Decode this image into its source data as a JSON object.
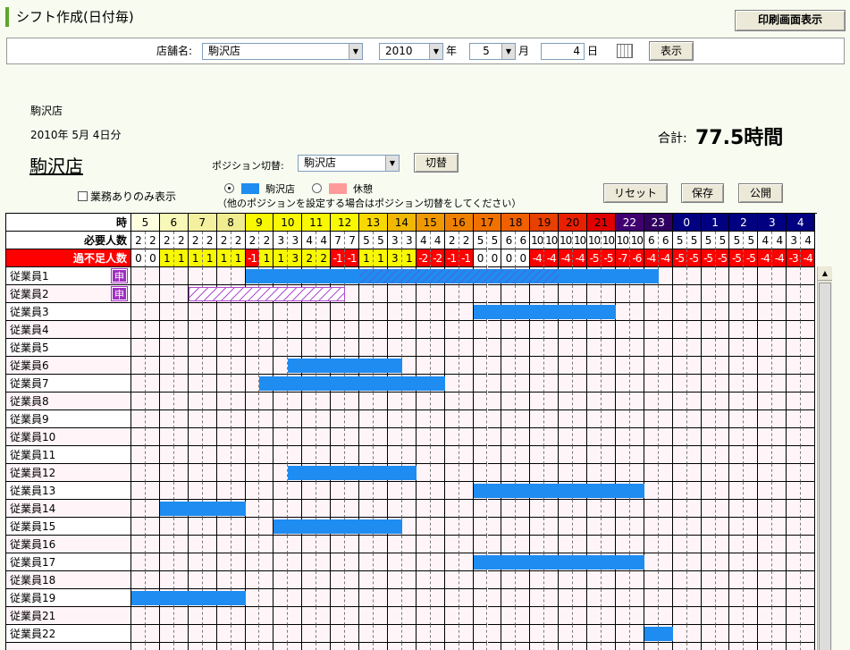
{
  "page_title": "シフト作成(日付毎)",
  "print_button": "印刷画面表示",
  "filter": {
    "store_label": "店舗名:",
    "store_value": "駒沢店",
    "year_value": "2010",
    "year_unit": "年",
    "month_value": "5",
    "month_unit": "月",
    "day_value": "4",
    "day_unit": "日",
    "show_button": "表示",
    "calendar_icon": "calendar-icon"
  },
  "info": {
    "store_small": "駒沢店",
    "date": "2010年 5月 4日分",
    "store_big": "駒沢店",
    "total_label": "合計:",
    "total_value": "77.5時間"
  },
  "position": {
    "label": "ポジション切替:",
    "value": "駒沢店",
    "switch_button": "切替"
  },
  "checkbox_label": "業務ありのみ表示",
  "legend": {
    "item1": "駒沢店",
    "item2": "休憩",
    "item1_color": "#1e8cf0",
    "item2_color": "#ff9a9a",
    "note": "（他のポジションを設定する場合はポジション切替をしてください）"
  },
  "actions": {
    "reset": "リセット",
    "save": "保存",
    "publish": "公開"
  },
  "grid": {
    "header_label": "時",
    "required_label": "必要人数",
    "shortage_label": "過不足人数",
    "badge_text": "申",
    "hours": [
      "5",
      "6",
      "7",
      "8",
      "9",
      "10",
      "11",
      "12",
      "13",
      "14",
      "15",
      "16",
      "17",
      "18",
      "19",
      "20",
      "21",
      "22",
      "23",
      "0",
      "1",
      "2",
      "3",
      "4"
    ],
    "hour_colors": [
      "#ffffe0",
      "#f8f8b8",
      "#f4f0a0",
      "#f0ec90",
      "#f8f800",
      "#f8f800",
      "#f8f800",
      "#f8f800",
      "#f8d800",
      "#f0b800",
      "#f09800",
      "#f08000",
      "#f07000",
      "#f06000",
      "#e84000",
      "#e82000",
      "#e00000",
      "#400070",
      "#300060",
      "#000080",
      "#000080",
      "#000080",
      "#000080",
      "#000080"
    ],
    "hour_text_colors": [
      "#000",
      "#000",
      "#000",
      "#000",
      "#000",
      "#000",
      "#000",
      "#000",
      "#000",
      "#000",
      "#000",
      "#000",
      "#000",
      "#000",
      "#000",
      "#000",
      "#000",
      "#fff",
      "#fff",
      "#fff",
      "#fff",
      "#fff",
      "#fff",
      "#fff"
    ],
    "required": [
      "2",
      "2",
      "2",
      "2",
      "2",
      "2",
      "2",
      "2",
      "2",
      "2",
      "3",
      "3",
      "4",
      "4",
      "7",
      "7",
      "5",
      "5",
      "3",
      "3",
      "4",
      "4",
      "2",
      "2",
      "5",
      "5",
      "6",
      "6",
      "10",
      "10",
      "10",
      "10",
      "10",
      "10",
      "10",
      "10",
      "6",
      "6",
      "5",
      "5",
      "5",
      "5",
      "5",
      "5",
      "4",
      "4",
      "3",
      "4"
    ],
    "shortage": [
      "0",
      "0",
      "1",
      "1",
      "1",
      "1",
      "1",
      "1",
      "-1",
      "1",
      "1",
      "3",
      "2",
      "2",
      "-1",
      "-1",
      "1",
      "1",
      "3",
      "1",
      "-2",
      "-2",
      "-1",
      "-1",
      "0",
      "0",
      "0",
      "0",
      "-4",
      "-4",
      "-4",
      "-4",
      "-5",
      "-5",
      "-7",
      "-6",
      "-4",
      "-4",
      "-5",
      "-5",
      "-5",
      "-5",
      "-5",
      "-5",
      "-4",
      "-4",
      "-3",
      "-4"
    ],
    "shortage_colors": [
      "#ffffff",
      "#ffffff",
      "#f8f800",
      "#f8f800",
      "#f8f800",
      "#f8f800",
      "#f8f800",
      "#f8f800",
      "#ff0000",
      "#f8f800",
      "#f8f800",
      "#f8f800",
      "#f8f800",
      "#f8f800",
      "#ff0000",
      "#ff0000",
      "#f8f800",
      "#f8f800",
      "#f8f800",
      "#f8f800",
      "#ff0000",
      "#ff0000",
      "#ff0000",
      "#ff0000",
      "#ffffff",
      "#ffffff",
      "#ffffff",
      "#ffffff",
      "#ff0000",
      "#ff0000",
      "#ff0000",
      "#ff0000",
      "#ff0000",
      "#ff0000",
      "#ff0000",
      "#ff0000",
      "#ff0000",
      "#ff0000",
      "#ff0000",
      "#ff0000",
      "#ff0000",
      "#ff0000",
      "#ff0000",
      "#ff0000",
      "#ff0000",
      "#ff0000",
      "#ff0000",
      "#ff0000"
    ],
    "employees": [
      {
        "name": "従業員1",
        "badge": true,
        "shifts": [
          {
            "start": 8,
            "end": 37,
            "type": "work"
          }
        ]
      },
      {
        "name": "従業員2",
        "badge": true,
        "shifts": [
          {
            "start": 4,
            "end": 15,
            "type": "request"
          }
        ]
      },
      {
        "name": "従業員3",
        "badge": false,
        "shifts": [
          {
            "start": 24,
            "end": 34,
            "type": "work"
          }
        ]
      },
      {
        "name": "従業員4",
        "badge": false,
        "shifts": []
      },
      {
        "name": "従業員5",
        "badge": false,
        "shifts": []
      },
      {
        "name": "従業員6",
        "badge": false,
        "shifts": [
          {
            "start": 11,
            "end": 19,
            "type": "work"
          }
        ]
      },
      {
        "name": "従業員7",
        "badge": false,
        "shifts": [
          {
            "start": 9,
            "end": 22,
            "type": "work"
          }
        ]
      },
      {
        "name": "従業員8",
        "badge": false,
        "shifts": []
      },
      {
        "name": "従業員9",
        "badge": false,
        "shifts": []
      },
      {
        "name": "従業員10",
        "badge": false,
        "shifts": []
      },
      {
        "name": "従業員11",
        "badge": false,
        "shifts": []
      },
      {
        "name": "従業員12",
        "badge": false,
        "shifts": [
          {
            "start": 11,
            "end": 20,
            "type": "work"
          }
        ]
      },
      {
        "name": "従業員13",
        "badge": false,
        "shifts": [
          {
            "start": 24,
            "end": 36,
            "type": "work"
          }
        ]
      },
      {
        "name": "従業員14",
        "badge": false,
        "shifts": [
          {
            "start": 2,
            "end": 8,
            "type": "work"
          }
        ]
      },
      {
        "name": "従業員15",
        "badge": false,
        "shifts": [
          {
            "start": 10,
            "end": 19,
            "type": "work"
          }
        ]
      },
      {
        "name": "従業員16",
        "badge": false,
        "shifts": []
      },
      {
        "name": "従業員17",
        "badge": false,
        "shifts": [
          {
            "start": 24,
            "end": 36,
            "type": "work"
          }
        ]
      },
      {
        "name": "従業員18",
        "badge": false,
        "shifts": []
      },
      {
        "name": "従業員19",
        "badge": false,
        "shifts": [
          {
            "start": 0,
            "end": 8,
            "type": "work"
          }
        ]
      },
      {
        "name": "従業員21",
        "badge": false,
        "shifts": []
      },
      {
        "name": "従業員22",
        "badge": false,
        "shifts": [
          {
            "start": 36,
            "end": 38,
            "type": "work"
          }
        ]
      },
      {
        "name": "",
        "badge": false,
        "shifts": []
      }
    ]
  }
}
